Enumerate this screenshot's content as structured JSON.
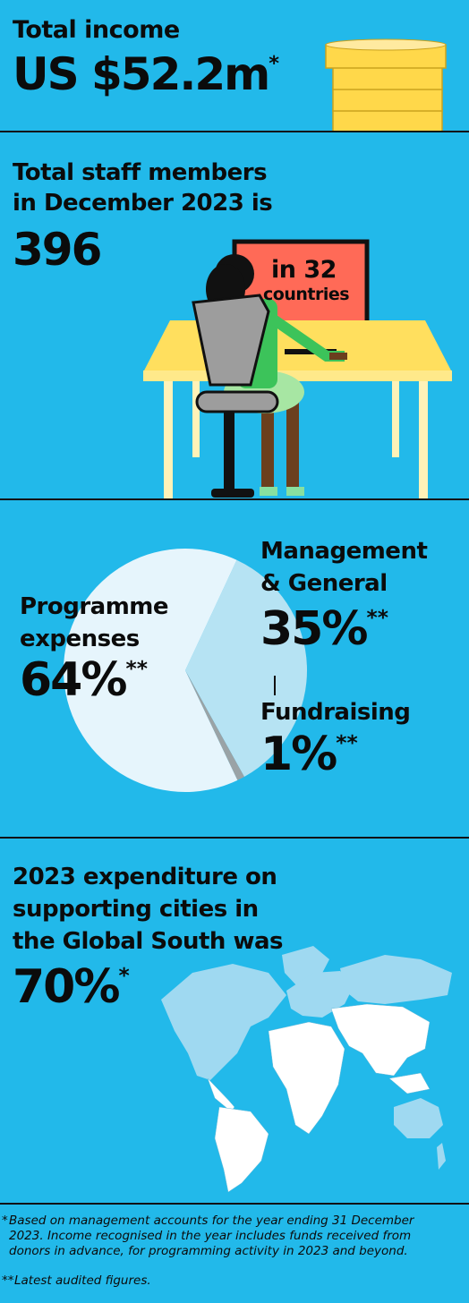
{
  "income": {
    "label": "Total income",
    "value": "US $52.2m",
    "mark": "*"
  },
  "staff": {
    "label_line1": "Total staff members",
    "label_line2": "in December 2023 is",
    "value": "396",
    "screen_line1": "in 32",
    "screen_line2": "countries"
  },
  "expenses": {
    "programme": {
      "label_line1": "Programme",
      "label_line2": "expenses",
      "value": "64%",
      "mark": "**"
    },
    "management": {
      "label_line1": "Management",
      "label_line2": "& General",
      "value": "35%",
      "mark": "**"
    },
    "fundraising": {
      "label": "Fundraising",
      "value": "1%",
      "mark": "**"
    }
  },
  "chart_data": {
    "type": "pie",
    "categories": [
      "Programme expenses",
      "Management & General",
      "Fundraising"
    ],
    "values": [
      64,
      35,
      1
    ],
    "colors": [
      "#e6f5fc",
      "#b6e3f3",
      "#9aa3a6"
    ]
  },
  "global_south": {
    "line1": "2023 expenditure on",
    "line2": "supporting cities in",
    "line3": "the Global South was",
    "value": "70%",
    "mark": "*"
  },
  "footnotes": {
    "note1_mark": "*",
    "note1_line1": "Based on management accounts for the year ending 31 December",
    "note1_line2": "2023. Income recognised in the year includes funds received from",
    "note1_line3": "donors in advance, for programming activity in 2023 and beyond.",
    "note2_mark": "**",
    "note2": "Latest audited figures."
  },
  "colors": {
    "background": "#22b9ea",
    "coin": "#ffd84a",
    "desk": "#ffdf5e",
    "screen": "#ff6a57"
  }
}
